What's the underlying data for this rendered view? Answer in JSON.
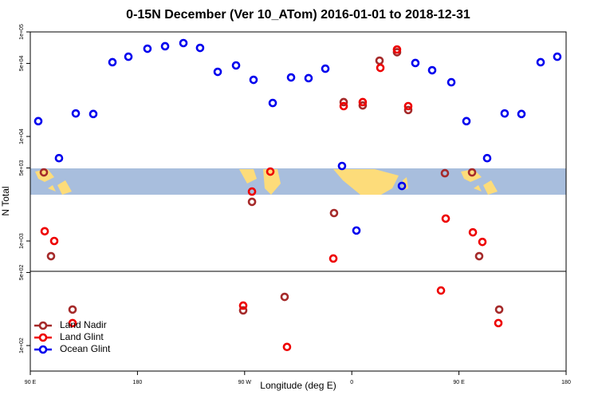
{
  "chart_data": {
    "type": "scatter",
    "title": "0-15N December (Ver 10_ATom)   2016-01-01 to 2018-12-31",
    "x_label": "Longitude (deg E)",
    "y_label": "N Total",
    "xlim": [
      90,
      540
    ],
    "xticks": [
      {
        "value": 90,
        "label": "90 E"
      },
      {
        "value": 180,
        "label": "180"
      },
      {
        "value": 270,
        "label": "90 W"
      },
      {
        "value": 360,
        "label": "0"
      },
      {
        "value": 450,
        "label": "90 E"
      },
      {
        "value": 540,
        "label": "180"
      }
    ],
    "ylim": [
      57,
      100000
    ],
    "log_y": true,
    "yticks": [
      {
        "value": 100000,
        "label": "1e+05"
      },
      {
        "value": 50000,
        "label": "5e+04"
      },
      {
        "value": 10000,
        "label": "1e+04"
      },
      {
        "value": 5000,
        "label": "5e+03"
      },
      {
        "value": 1000,
        "label": "1e+03"
      },
      {
        "value": 500,
        "label": "5e+02"
      },
      {
        "value": 100,
        "label": "1e+02"
      }
    ],
    "legend": "bottom-left",
    "series": [
      {
        "name": "Land Nadir",
        "color": "#a52a2a",
        "x": [
          101.4,
          107.4,
          125.5,
          268.8,
          276.2,
          303.6,
          345.1,
          353.2,
          369.2,
          383.3,
          398,
          407.4,
          438.2,
          461,
          467,
          483.8
        ],
        "values": [
          4530,
          716,
          221,
          217,
          2370,
          292,
          1850,
          21300,
          19800,
          53100,
          64000,
          17900,
          4450,
          4530,
          716,
          221
        ]
      },
      {
        "name": "Land Glint",
        "color": "#ee0000",
        "x": [
          102.1,
          110.1,
          125.5,
          268.8,
          276.2,
          291.6,
          305.6,
          344.5,
          353.2,
          369.2,
          384,
          398,
          407.4,
          434.9,
          438.9,
          461.7,
          469.7,
          483.1
        ],
        "values": [
          1240,
          1000,
          164,
          241,
          2970,
          4610,
          97,
          680,
          19500,
          21300,
          45300,
          67900,
          19500,
          336,
          1640,
          1210,
          980,
          164
        ]
      },
      {
        "name": "Ocean Glint",
        "color": "#0000ee",
        "x": [
          96.7,
          114.1,
          128.2,
          142.9,
          159,
          172.4,
          188.4,
          203.2,
          218.6,
          232.6,
          247.4,
          262.8,
          277.5,
          293.6,
          309,
          323.7,
          337.8,
          351.8,
          363.9,
          402.1,
          413.4,
          427.5,
          443.6,
          456.3,
          473.7,
          488.4,
          502.5,
          518.6,
          532.6
        ],
        "values": [
          14000,
          6200,
          16600,
          16400,
          51300,
          57900,
          69100,
          72900,
          78200,
          70300,
          41500,
          47800,
          34800,
          20900,
          36700,
          36100,
          44500,
          5220,
          1260,
          3360,
          50400,
          43000,
          33000,
          14000,
          6200,
          16600,
          16400,
          51300,
          57900
        ]
      }
    ]
  }
}
